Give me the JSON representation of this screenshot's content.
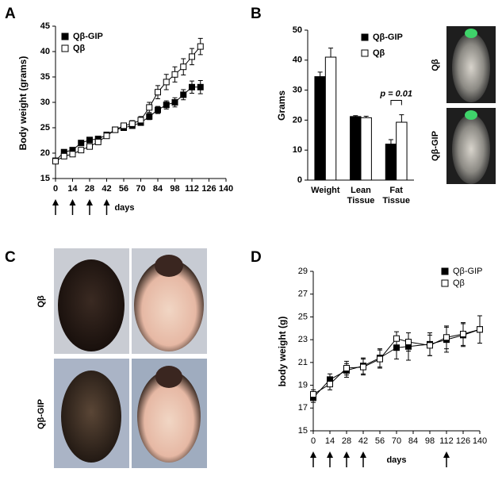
{
  "chart_data": [
    {
      "type": "line",
      "panel": "A",
      "ylabel": "Body weight (grams)",
      "xlabel": "days",
      "x": [
        0,
        7,
        14,
        21,
        28,
        35,
        42,
        49,
        56,
        63,
        70,
        77,
        84,
        91,
        98,
        105,
        112,
        119
      ],
      "xlim": [
        0,
        140
      ],
      "xticks": [
        0,
        14,
        28,
        42,
        56,
        70,
        84,
        98,
        112,
        126,
        140
      ],
      "ylim": [
        15,
        45
      ],
      "yticks": [
        15,
        20,
        25,
        30,
        35,
        40,
        45
      ],
      "arrows": [
        0,
        14,
        28,
        42
      ],
      "grid": false,
      "series": [
        {
          "name": "Qβ-GIP",
          "color": "#000000",
          "marker_fill": "#000000",
          "values": [
            18.5,
            20.2,
            20.6,
            22.0,
            22.6,
            22.8,
            23.6,
            24.6,
            25.0,
            25.4,
            26.0,
            27.2,
            28.5,
            29.5,
            30.0,
            31.5,
            33.0,
            33.0
          ],
          "errors": [
            0.3,
            0.3,
            0.3,
            0.3,
            0.3,
            0.3,
            0.3,
            0.4,
            0.4,
            0.5,
            0.5,
            0.6,
            0.7,
            0.8,
            0.9,
            1.0,
            1.2,
            1.3
          ]
        },
        {
          "name": "Qβ",
          "color": "#000000",
          "marker_fill": "#ffffff",
          "values": [
            18.4,
            19.4,
            19.8,
            20.6,
            21.3,
            22.2,
            23.4,
            24.6,
            25.4,
            25.8,
            26.5,
            29.0,
            32.0,
            34.0,
            35.5,
            37.0,
            39.0,
            41.0
          ],
          "errors": [
            0.3,
            0.3,
            0.3,
            0.3,
            0.3,
            0.4,
            0.4,
            0.5,
            0.5,
            0.6,
            0.7,
            1.0,
            1.3,
            1.5,
            1.5,
            1.6,
            1.6,
            1.6
          ]
        }
      ]
    },
    {
      "type": "bar",
      "panel": "B",
      "ylabel": "Grams",
      "categories": [
        "Weight",
        "Lean Tissue",
        "Fat Tissue"
      ],
      "ylim": [
        0,
        50
      ],
      "yticks": [
        0,
        10,
        20,
        30,
        40,
        50
      ],
      "grid": false,
      "annotation": "p = 0.01",
      "image_labels": [
        "Qβ",
        "Qβ-GIP"
      ],
      "series": [
        {
          "name": "Qβ-GIP",
          "color": "#000000",
          "values": [
            34.5,
            21.2,
            12.0
          ],
          "errors": [
            1.5,
            0.3,
            1.5
          ]
        },
        {
          "name": "Qβ",
          "color": "#ffffff",
          "values": [
            41.0,
            20.8,
            19.3
          ],
          "errors": [
            3.0,
            0.5,
            2.5
          ]
        }
      ]
    },
    {
      "type": "line",
      "panel": "D",
      "ylabel": "body weight (g)",
      "xlabel": "days",
      "x": [
        0,
        14,
        28,
        42,
        56,
        70,
        80,
        98,
        112,
        126,
        140
      ],
      "xlim": [
        0,
        140
      ],
      "xticks": [
        0,
        14,
        28,
        42,
        56,
        70,
        84,
        98,
        112,
        126,
        140
      ],
      "ylim": [
        15,
        29
      ],
      "yticks": [
        15,
        17,
        19,
        21,
        23,
        25,
        27,
        29
      ],
      "arrows": [
        0,
        14,
        28,
        42,
        112
      ],
      "grid": false,
      "series": [
        {
          "name": "Qβ-GIP",
          "color": "#000000",
          "marker_fill": "#000000",
          "values": [
            17.9,
            19.5,
            20.3,
            20.7,
            21.4,
            22.3,
            22.4,
            22.6,
            23.0,
            23.4,
            23.9
          ],
          "errors": [
            0.4,
            0.5,
            0.6,
            0.7,
            0.8,
            1.0,
            1.2,
            1.0,
            1.1,
            1.0,
            1.2
          ]
        },
        {
          "name": "Qβ",
          "color": "#000000",
          "marker_fill": "#ffffff",
          "values": [
            18.2,
            19.1,
            20.5,
            20.6,
            21.3,
            23.1,
            22.8,
            22.5,
            23.2,
            23.5,
            23.9
          ],
          "errors": [
            0.4,
            0.5,
            0.6,
            0.7,
            0.8,
            0.6,
            0.8,
            0.9,
            1.0,
            1.0,
            1.2
          ]
        }
      ]
    }
  ],
  "photo_panel": {
    "panel": "C",
    "labels": [
      "Qβ",
      "Qβ-GIP"
    ]
  }
}
